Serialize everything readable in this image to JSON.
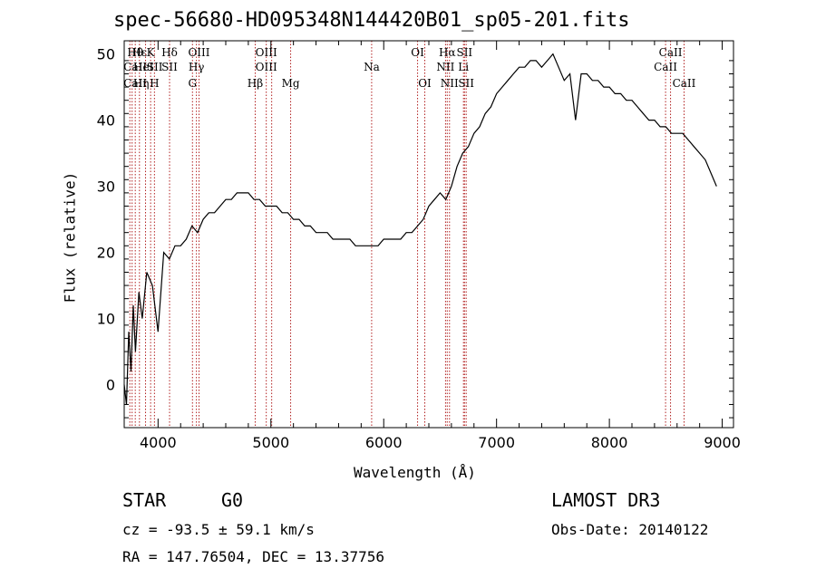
{
  "chart_data": {
    "type": "line",
    "title": "spec-56680-HD095348N144420B01_sp05-201.fits",
    "xlabel": "Wavelength (Å)",
    "ylabel": "Flux (relative)",
    "xlim": [
      3700,
      9100
    ],
    "ylim": [
      -6.5,
      52
    ],
    "xticks": [
      4000,
      5000,
      6000,
      7000,
      8000,
      9000
    ],
    "yticks": [
      0,
      10,
      20,
      30,
      40,
      50
    ],
    "grid": false,
    "series": [
      {
        "name": "flux",
        "x": [
          3700,
          3720,
          3740,
          3760,
          3780,
          3800,
          3830,
          3860,
          3900,
          3950,
          4000,
          4050,
          4100,
          4150,
          4200,
          4250,
          4300,
          4350,
          4400,
          4450,
          4500,
          4550,
          4600,
          4650,
          4700,
          4750,
          4800,
          4850,
          4900,
          4950,
          5000,
          5050,
          5100,
          5150,
          5200,
          5250,
          5300,
          5350,
          5400,
          5450,
          5500,
          5550,
          5600,
          5650,
          5700,
          5750,
          5800,
          5850,
          5900,
          5950,
          6000,
          6050,
          6100,
          6150,
          6200,
          6250,
          6300,
          6350,
          6400,
          6450,
          6500,
          6550,
          6600,
          6650,
          6700,
          6750,
          6800,
          6850,
          6900,
          6950,
          7000,
          7050,
          7100,
          7150,
          7200,
          7250,
          7300,
          7350,
          7400,
          7450,
          7500,
          7550,
          7600,
          7650,
          7700,
          7750,
          7800,
          7850,
          7900,
          7950,
          8000,
          8050,
          8100,
          8150,
          8200,
          8250,
          8300,
          8350,
          8400,
          8450,
          8500,
          8550,
          8600,
          8650,
          8700,
          8750,
          8800,
          8850,
          8900,
          8950
        ],
        "y": [
          0,
          -3,
          8,
          2,
          12,
          5,
          14,
          10,
          17,
          15,
          8,
          20,
          19,
          21,
          21,
          22,
          24,
          23,
          25,
          26,
          26,
          27,
          28,
          28,
          29,
          29,
          29,
          28,
          28,
          27,
          27,
          27,
          26,
          26,
          25,
          25,
          24,
          24,
          23,
          23,
          23,
          22,
          22,
          22,
          22,
          21,
          21,
          21,
          21,
          21,
          22,
          22,
          22,
          22,
          23,
          23,
          24,
          25,
          27,
          28,
          29,
          28,
          30,
          33,
          35,
          36,
          38,
          39,
          41,
          42,
          44,
          45,
          46,
          47,
          48,
          48,
          49,
          49,
          48,
          49,
          50,
          48,
          46,
          47,
          40,
          47,
          47,
          46,
          46,
          45,
          45,
          44,
          44,
          43,
          43,
          42,
          41,
          40,
          40,
          39,
          39,
          38,
          38,
          38,
          37,
          36,
          35,
          34,
          32,
          30
        ]
      }
    ],
    "line_labels": [
      {
        "text": "Hθ",
        "wl": 3798,
        "row": 0
      },
      {
        "text": "CaII",
        "wl": 3798,
        "row": 1
      },
      {
        "text": "CaII",
        "wl": 3798,
        "row": 2
      },
      {
        "text": "Hε",
        "wl": 3835,
        "row": 0
      },
      {
        "text": "HeI",
        "wl": 3870,
        "row": 1
      },
      {
        "text": "Hη",
        "wl": 3850,
        "row": 2
      },
      {
        "text": "K",
        "wl": 3934,
        "row": 0
      },
      {
        "text": "SII",
        "wl": 3970,
        "row": 1
      },
      {
        "text": "H",
        "wl": 3968,
        "row": 2
      },
      {
        "text": "Hδ",
        "wl": 4102,
        "row": 0
      },
      {
        "text": "SII",
        "wl": 4102,
        "row": 1
      },
      {
        "text": "OIII",
        "wl": 4363,
        "row": 0
      },
      {
        "text": "Hγ",
        "wl": 4340,
        "row": 1
      },
      {
        "text": "G",
        "wl": 4305,
        "row": 2
      },
      {
        "text": "OIII",
        "wl": 4959,
        "row": 0
      },
      {
        "text": "OIII",
        "wl": 4959,
        "row": 1
      },
      {
        "text": "Hβ",
        "wl": 4861,
        "row": 2
      },
      {
        "text": "Mg",
        "wl": 5175,
        "row": 2
      },
      {
        "text": "Na",
        "wl": 5893,
        "row": 1
      },
      {
        "text": "OI",
        "wl": 6300,
        "row": 0
      },
      {
        "text": "OI",
        "wl": 6364,
        "row": 2
      },
      {
        "text": "Hα",
        "wl": 6563,
        "row": 0
      },
      {
        "text": "SII",
        "wl": 6716,
        "row": 0
      },
      {
        "text": "NII",
        "wl": 6548,
        "row": 1
      },
      {
        "text": "Li",
        "wl": 6707,
        "row": 1
      },
      {
        "text": "NII",
        "wl": 6583,
        "row": 2
      },
      {
        "text": "SII",
        "wl": 6731,
        "row": 2
      },
      {
        "text": "CaII",
        "wl": 8542,
        "row": 0
      },
      {
        "text": "CaII",
        "wl": 8498,
        "row": 1
      },
      {
        "text": "CaII",
        "wl": 8662,
        "row": 2
      }
    ],
    "line_markers": [
      3750,
      3770,
      3798,
      3835,
      3889,
      3934,
      3968,
      4102,
      4305,
      4340,
      4363,
      4861,
      4959,
      5007,
      5175,
      5893,
      6300,
      6364,
      6548,
      6563,
      6583,
      6707,
      6716,
      6731,
      8498,
      8542,
      8662
    ]
  },
  "info": {
    "object_class": "STAR",
    "subclass": "G0",
    "survey": "LAMOST DR3",
    "cz": "cz = -93.5 ± 59.1 km/s",
    "obs_date": "Obs-Date: 20140122",
    "coords": "RA = 147.76504, DEC =  13.37756"
  }
}
